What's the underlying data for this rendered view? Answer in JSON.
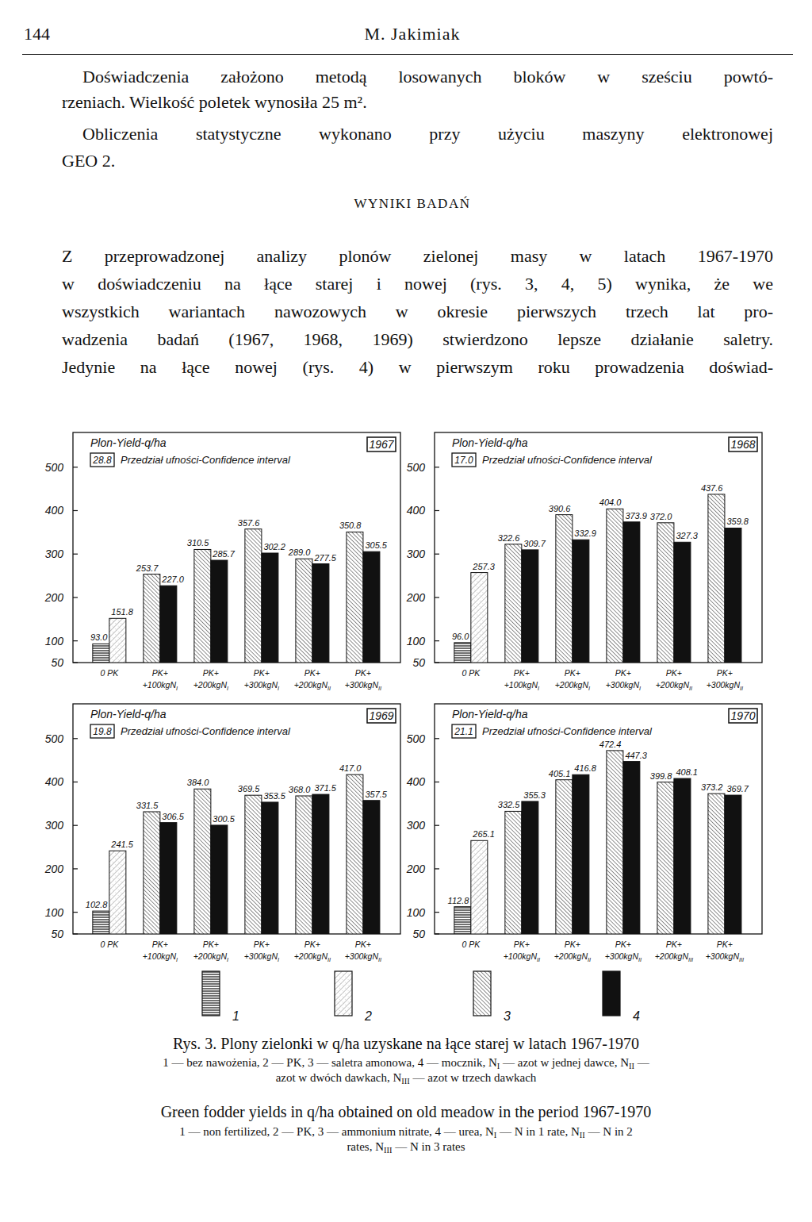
{
  "header": {
    "page": "144",
    "author": "M. Jakimiak"
  },
  "paragraphs": [
    [
      "Doświadczenia założono metodą losowanych bloków w sześciu powtó-",
      "rzeniach. Wielkość poletek wynosiła 25 m²."
    ],
    [
      "Obliczenia statystyczne wykonano przy użyciu maszyny elektronowej",
      "GEO 2."
    ]
  ],
  "section_title": "WYNIKI BADAŃ",
  "results_paragraph": [
    "Z przeprowadzonej analizy plonów zielonej masy w latach 1967-1970",
    "w doświadczeniu na łące starej i nowej (rys. 3, 4, 5) wynika, że we",
    "wszystkich wariantach nawozowych w okresie pierwszych trzech lat pro-",
    "wadzenia badań (1967, 1968, 1969) stwierdzono lepsze działanie saletry.",
    "Jedynie na łące nowej (rys. 4) w pierwszym roku prowadzenia doświad-"
  ],
  "chart_data": [
    {
      "type": "bar",
      "title": "1967",
      "y_label": "Plon-Yield-q/ha",
      "confidence_interval": {
        "value": 28.8,
        "label": "28.8"
      },
      "confidence_interval_text": "Przedział ufności-Confidence interval",
      "categories": [
        "0 PK",
        "PK+\n+100kgNI",
        "PK+\n+200kgNI",
        "PK+\n+300kgNI",
        "PK+\n+200kgNII",
        "PK+\n+300kgNII"
      ],
      "series": [
        {
          "name": "1",
          "values": [
            93.0,
            null,
            null,
            null,
            null,
            null
          ],
          "value_labels": [
            "93.0",
            null,
            null,
            null,
            null,
            null
          ]
        },
        {
          "name": "2",
          "values": [
            151.8,
            null,
            null,
            null,
            null,
            null
          ],
          "value_labels": [
            "151.8",
            null,
            null,
            null,
            null,
            null
          ]
        },
        {
          "name": "3",
          "values": [
            null,
            253.7,
            310.5,
            357.6,
            289.0,
            350.8
          ],
          "value_labels": [
            null,
            "253.7",
            "310.5",
            "357.6",
            "289.0",
            "350.8"
          ]
        },
        {
          "name": "4",
          "values": [
            null,
            227.0,
            285.7,
            302.2,
            277.5,
            305.5
          ],
          "value_labels": [
            null,
            "227.0",
            "285.7",
            "302.2",
            "277.5",
            "305.5"
          ]
        }
      ],
      "ylim": [
        50,
        580
      ],
      "yticks": [
        50,
        100,
        200,
        300,
        400,
        500
      ],
      "data_labels": true
    },
    {
      "type": "bar",
      "title": "1968",
      "y_label": "Plon-Yield-q/ha",
      "confidence_interval": {
        "value": 17.0,
        "label": "17.0"
      },
      "confidence_interval_text": "Przedział ufności-Confidence interval",
      "categories": [
        "0 PK",
        "PK+\n+100kgNI",
        "PK+\n+200kgNI",
        "PK+\n+300kgNI",
        "PK+\n+200kgNII",
        "PK+\n+300kgNII"
      ],
      "series": [
        {
          "name": "1",
          "values": [
            96.0,
            null,
            null,
            null,
            null,
            null
          ],
          "value_labels": [
            "96.0",
            null,
            null,
            null,
            null,
            null
          ]
        },
        {
          "name": "2",
          "values": [
            257.3,
            null,
            null,
            null,
            null,
            null
          ],
          "value_labels": [
            "257.3",
            null,
            null,
            null,
            null,
            null
          ]
        },
        {
          "name": "3",
          "values": [
            null,
            322.6,
            390.6,
            404.0,
            372.0,
            437.6
          ],
          "value_labels": [
            null,
            "322.6",
            "390.6",
            "404.0",
            "372.0",
            "437.6"
          ]
        },
        {
          "name": "4",
          "values": [
            null,
            309.7,
            332.9,
            373.9,
            327.3,
            359.8
          ],
          "value_labels": [
            null,
            "309.7",
            "332.9",
            "373.9",
            "327.3",
            "359.8"
          ]
        }
      ],
      "ylim": [
        50,
        580
      ],
      "yticks": [
        50,
        100,
        200,
        300,
        400,
        500
      ],
      "data_labels": true
    },
    {
      "type": "bar",
      "title": "1969",
      "y_label": "Plon-Yield-q/ha",
      "confidence_interval": {
        "value": 19.8,
        "label": "19.8"
      },
      "confidence_interval_text": "Przedział ufności-Confidence interval",
      "categories": [
        "0 PK",
        "PK+\n+100kgNI",
        "PK+\n+200kgNI",
        "PK+\n+300kgNI",
        "PK+\n+200kgNII",
        "PK+\n+300kgNII"
      ],
      "series": [
        {
          "name": "1",
          "values": [
            102.8,
            null,
            null,
            null,
            null,
            null
          ],
          "value_labels": [
            "102.8",
            null,
            null,
            null,
            null,
            null
          ]
        },
        {
          "name": "2",
          "values": [
            241.5,
            null,
            null,
            null,
            null,
            null
          ],
          "value_labels": [
            "241.5",
            null,
            null,
            null,
            null,
            null
          ]
        },
        {
          "name": "3",
          "values": [
            null,
            331.5,
            384.0,
            369.5,
            368.0,
            417.0
          ],
          "value_labels": [
            null,
            "331.5",
            "384.0",
            "369.5",
            "368.0",
            "417.0"
          ]
        },
        {
          "name": "4",
          "values": [
            null,
            306.5,
            300.5,
            353.5,
            371.5,
            357.5
          ],
          "value_labels": [
            null,
            "306.5",
            "300.5",
            "353.5",
            "371.5",
            "357.5"
          ]
        }
      ],
      "ylim": [
        50,
        580
      ],
      "yticks": [
        50,
        100,
        200,
        300,
        400,
        500
      ],
      "data_labels": true
    },
    {
      "type": "bar",
      "title": "1970",
      "y_label": "Plon-Yield-q/ha",
      "confidence_interval": {
        "value": 21.1,
        "label": "21.1"
      },
      "confidence_interval_text": "Przedział ufności-Confidence interval",
      "categories": [
        "0 PK",
        "PK+\n+100kgNII",
        "PK+\n+200kgNII",
        "PK+\n+300kgNII",
        "PK+\n+200kgNIII",
        "PK+\n+300kgNIII"
      ],
      "series": [
        {
          "name": "1",
          "values": [
            112.8,
            null,
            null,
            null,
            null,
            null
          ],
          "value_labels": [
            "112.8",
            null,
            null,
            null,
            null,
            null
          ]
        },
        {
          "name": "2",
          "values": [
            265.1,
            null,
            null,
            null,
            null,
            null
          ],
          "value_labels": [
            "265.1",
            null,
            null,
            null,
            null,
            null
          ]
        },
        {
          "name": "3",
          "values": [
            null,
            332.5,
            405.1,
            472.4,
            399.8,
            373.2
          ],
          "value_labels": [
            null,
            "332.5",
            "405.1",
            "472.4",
            "399.8",
            "373.2"
          ]
        },
        {
          "name": "4",
          "values": [
            null,
            355.3,
            416.8,
            447.3,
            408.1,
            369.7
          ],
          "value_labels": [
            null,
            "355.3",
            "416.8",
            "447.3",
            "408.1",
            "369.7"
          ]
        }
      ],
      "ylim": [
        50,
        580
      ],
      "yticks": [
        50,
        100,
        200,
        300,
        400,
        500
      ],
      "data_labels": true
    }
  ],
  "caption": {
    "pl_title": "Rys. 3. Plony zielonki w q/ha uzyskane na łące starej w latach 1967-1970",
    "pl_lines": [
      "1 — bez nawożenia, 2 — PK, 3 — saletra amonowa, 4 — mocznik, NI — azot w jednej dawce, NII —",
      "azot w dwóch dawkach, NIII — azot w trzech dawkach"
    ],
    "en_title": "Green fodder yields in q/ha obtained on old meadow in the period 1967-1970",
    "en_lines": [
      "1 — non fertilized, 2 — PK, 3 — ammonium nitrate, 4 — urea, NI — N in 1 rate, NII — N in 2",
      "rates, NIII — N in 3 rates"
    ]
  }
}
